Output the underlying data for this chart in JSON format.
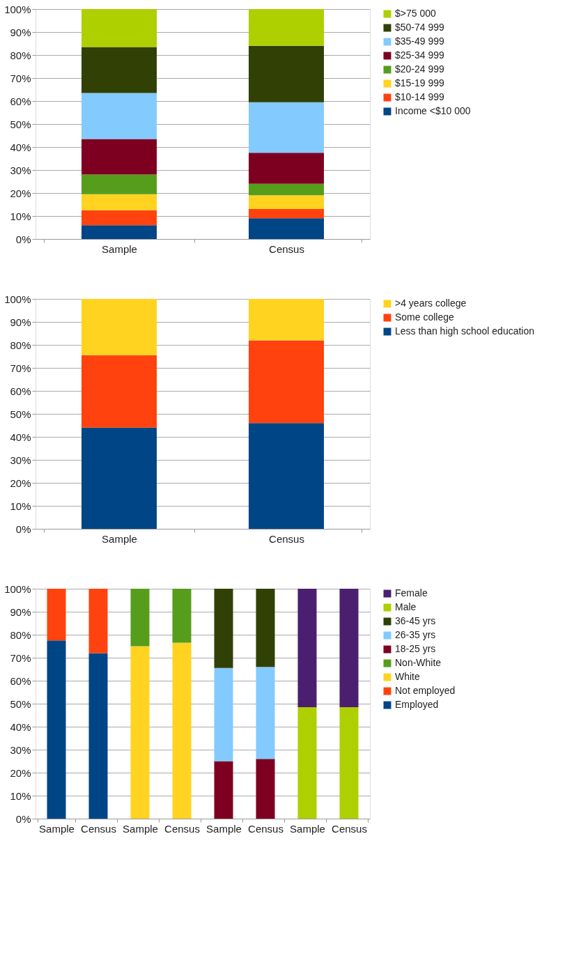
{
  "chart_data": [
    {
      "type": "bar",
      "stacked": true,
      "categories": [
        "Sample",
        "Census"
      ],
      "ylim": [
        0,
        100
      ],
      "yticks": [
        {
          "value": 0,
          "label": "0%"
        },
        {
          "value": 10,
          "label": "10%"
        },
        {
          "value": 20,
          "label": "20%"
        },
        {
          "value": 30,
          "label": "30%"
        },
        {
          "value": 40,
          "label": "40%"
        },
        {
          "value": 50,
          "label": "50%"
        },
        {
          "value": 60,
          "label": "60%"
        },
        {
          "value": 70,
          "label": "70%"
        },
        {
          "value": 80,
          "label": "80%"
        },
        {
          "value": 90,
          "label": "90%"
        },
        {
          "value": 100,
          "label": "100%"
        }
      ],
      "grid": "y",
      "legend": "right",
      "series": [
        {
          "name": "Income <$10 000",
          "color": "#004586",
          "values": [
            6,
            9
          ]
        },
        {
          "name": "$10-14 999",
          "color": "#ff420e",
          "values": [
            6.5,
            4
          ]
        },
        {
          "name": "$15-19 999",
          "color": "#ffd320",
          "values": [
            7,
            6
          ]
        },
        {
          "name": "$20-24 999",
          "color": "#579d1c",
          "values": [
            8.5,
            5
          ]
        },
        {
          "name": "$25-34 999",
          "color": "#7e0021",
          "values": [
            15.5,
            13.5
          ]
        },
        {
          "name": "$35-49 999",
          "color": "#83caff",
          "values": [
            20,
            22
          ]
        },
        {
          "name": "$50-74 999",
          "color": "#314004",
          "values": [
            20,
            24.5
          ]
        },
        {
          "name": "$>75 000",
          "color": "#aecf00",
          "values": [
            16.5,
            16
          ]
        }
      ]
    },
    {
      "type": "bar",
      "stacked": true,
      "categories": [
        "Sample",
        "Census"
      ],
      "ylim": [
        0,
        100
      ],
      "yticks": [
        {
          "value": 0,
          "label": "0%"
        },
        {
          "value": 10,
          "label": "10%"
        },
        {
          "value": 20,
          "label": "20%"
        },
        {
          "value": 30,
          "label": "30%"
        },
        {
          "value": 40,
          "label": "40%"
        },
        {
          "value": 50,
          "label": "50%"
        },
        {
          "value": 60,
          "label": "60%"
        },
        {
          "value": 70,
          "label": "70%"
        },
        {
          "value": 80,
          "label": "80%"
        },
        {
          "value": 90,
          "label": "90%"
        },
        {
          "value": 100,
          "label": "100%"
        }
      ],
      "grid": "y",
      "legend": "right",
      "series": [
        {
          "name": "Less than high school education",
          "color": "#004586",
          "values": [
            44,
            46
          ]
        },
        {
          "name": "Some college",
          "color": "#ff420e",
          "values": [
            31.5,
            36
          ]
        },
        {
          "name": ">4 years college",
          "color": "#ffd320",
          "values": [
            24.5,
            18
          ]
        }
      ]
    },
    {
      "type": "bar",
      "stacked": true,
      "categories": [
        "Sample",
        "Census",
        "Sample",
        "Census",
        "Sample",
        "Census",
        "Sample",
        "Census"
      ],
      "ylim": [
        0,
        100
      ],
      "yticks": [
        {
          "value": 0,
          "label": "0%"
        },
        {
          "value": 10,
          "label": "10%"
        },
        {
          "value": 20,
          "label": "20%"
        },
        {
          "value": 30,
          "label": "30%"
        },
        {
          "value": 40,
          "label": "40%"
        },
        {
          "value": 50,
          "label": "50%"
        },
        {
          "value": 60,
          "label": "60%"
        },
        {
          "value": 70,
          "label": "70%"
        },
        {
          "value": 80,
          "label": "80%"
        },
        {
          "value": 90,
          "label": "90%"
        },
        {
          "value": 100,
          "label": "100%"
        }
      ],
      "grid": "y",
      "legend": "right",
      "series": [
        {
          "name": "Employed",
          "color": "#004586",
          "values": [
            77.5,
            72,
            null,
            null,
            null,
            null,
            null,
            null
          ]
        },
        {
          "name": "Not employed",
          "color": "#ff420e",
          "values": [
            22.5,
            28,
            null,
            null,
            null,
            null,
            null,
            null
          ]
        },
        {
          "name": "White",
          "color": "#ffd320",
          "values": [
            null,
            null,
            75,
            76.5,
            null,
            null,
            null,
            null
          ]
        },
        {
          "name": "Non-White",
          "color": "#579d1c",
          "values": [
            null,
            null,
            25,
            23.5,
            null,
            null,
            null,
            null
          ]
        },
        {
          "name": "18-25 yrs",
          "color": "#7e0021",
          "values": [
            null,
            null,
            null,
            null,
            25,
            26,
            null,
            null
          ]
        },
        {
          "name": "26-35 yrs",
          "color": "#83caff",
          "values": [
            null,
            null,
            null,
            null,
            40.5,
            40,
            null,
            null
          ]
        },
        {
          "name": "36-45 yrs",
          "color": "#314004",
          "values": [
            null,
            null,
            null,
            null,
            34.5,
            34,
            null,
            null
          ]
        },
        {
          "name": "Male",
          "color": "#aecf00",
          "values": [
            null,
            null,
            null,
            null,
            null,
            null,
            48.5,
            48.5
          ]
        },
        {
          "name": "Female",
          "color": "#4b1f6f",
          "values": [
            null,
            null,
            null,
            null,
            null,
            null,
            51.5,
            51.5
          ]
        }
      ]
    }
  ]
}
